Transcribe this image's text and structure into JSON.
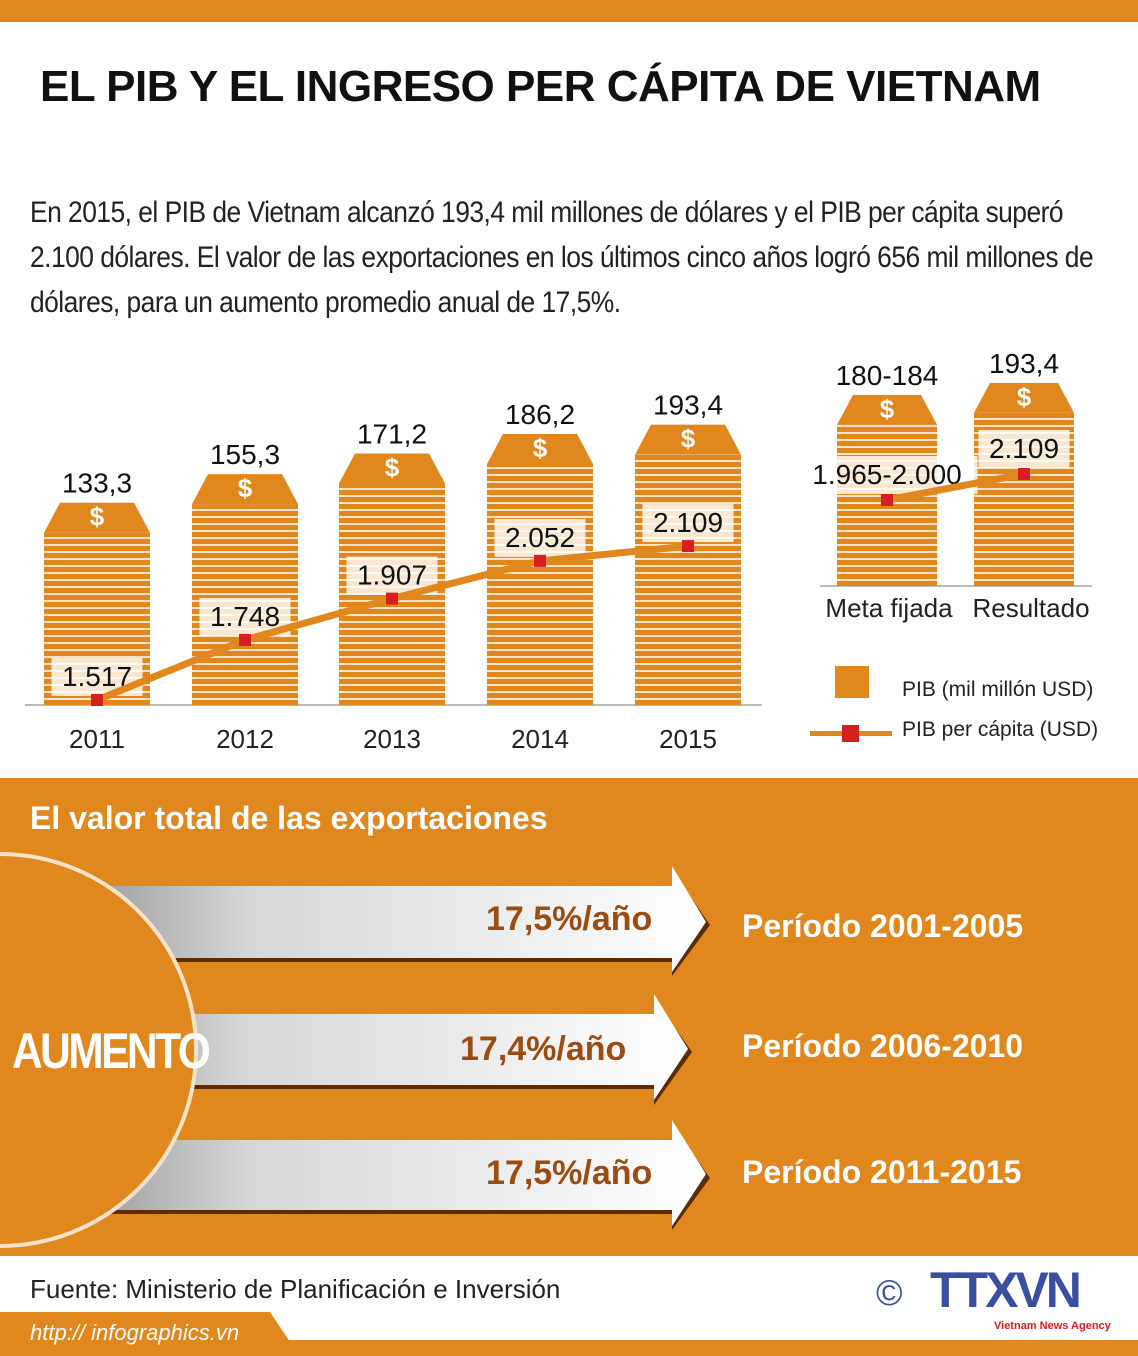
{
  "title": "EL PIB Y EL INGRESO PER CÁPITA DE VIETNAM",
  "intro": "En 2015, el PIB de Vietnam alcanzó 193,4 mil millones de dólares y el PIB per cápita superó 2.100 dólares. El valor de las exportaciones en los últimos cinco años logró 656 mil millones de dólares, para un aumento promedio anual de 17,5%.",
  "colors": {
    "accent": "#e0871e",
    "marker": "#d62020",
    "dark": "#9a4c12"
  },
  "chart_data": [
    {
      "type": "bar+line",
      "categories": [
        "2011",
        "2012",
        "2013",
        "2014",
        "2015"
      ],
      "series": [
        {
          "name": "PIB (mil millón USD)",
          "type": "bar",
          "values": [
            133.3,
            155.3,
            171.2,
            186.2,
            193.4
          ],
          "labels": [
            "133,3",
            "155,3",
            "171,2",
            "186,2",
            "193,4"
          ]
        },
        {
          "name": "PIB per cápita (USD)",
          "type": "line",
          "values": [
            1517,
            1748,
            1907,
            2052,
            2109
          ],
          "labels": [
            "1.517",
            "1.748",
            "1.907",
            "2.052",
            "2.109"
          ]
        }
      ],
      "bar_icon": "dollar-icon"
    },
    {
      "type": "bar+line",
      "categories": [
        "Meta fijada",
        "Resultado"
      ],
      "series": [
        {
          "name": "PIB (mil millón USD)",
          "type": "bar",
          "values": [
            182,
            193.4
          ],
          "labels": [
            "180-184",
            "193,4"
          ]
        },
        {
          "name": "PIB per cápita (USD)",
          "type": "line",
          "values": [
            1982.5,
            2109
          ],
          "labels": [
            "1.965-2.000",
            "2.109"
          ]
        }
      ]
    }
  ],
  "legend": {
    "bar": "PIB (mil millón USD)",
    "line": "PIB per cápita (USD)"
  },
  "exports": {
    "title": "El valor total de las exportaciones",
    "circle_label": "AUMENTO",
    "items": [
      {
        "rate": "17,5%/año",
        "period": "Período 2001-2005"
      },
      {
        "rate": "17,4%/año",
        "period": "Período 2006-2010"
      },
      {
        "rate": "17,5%/año",
        "period": "Período 2011-2015"
      }
    ]
  },
  "footer": {
    "source": "Fuente: Ministerio de Planificación e Inversión",
    "url": "http:// infographics.vn",
    "copyright": "©",
    "logo": "TTXVN",
    "logo_sub": "Vietnam News Agency"
  }
}
